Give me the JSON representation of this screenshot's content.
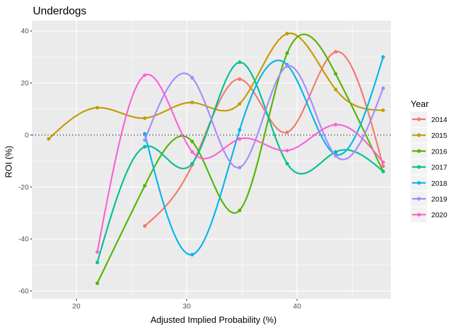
{
  "chart_data": {
    "type": "scatter",
    "title": "Underdogs",
    "xlabel": "Adjusted Implied Probability (%)",
    "ylabel": "ROI (%)",
    "xlim": [
      16,
      48.5
    ],
    "ylim": [
      -63,
      44
    ],
    "xticks": [
      20,
      30,
      40
    ],
    "yticks": [
      -60,
      -40,
      -20,
      0,
      20,
      40
    ],
    "grid": true,
    "reference_line": {
      "y": 0,
      "style": "dotted"
    },
    "legend": {
      "title": "Year",
      "position": "right"
    },
    "series": [
      {
        "name": "2014",
        "color": "#F8766D",
        "x": [
          26.2,
          30.5,
          34.8,
          39.1,
          43.5,
          47.8
        ],
        "y": [
          -35,
          -11.5,
          21.5,
          1,
          32,
          -12
        ]
      },
      {
        "name": "2015",
        "color": "#C49A00",
        "x": [
          17.5,
          21.9,
          26.2,
          30.5,
          34.8,
          39.1,
          43.5,
          47.8
        ],
        "y": [
          -1.5,
          10.5,
          6.5,
          12.5,
          12,
          39,
          17.5,
          9.5
        ]
      },
      {
        "name": "2016",
        "color": "#53B400",
        "x": [
          21.9,
          26.2,
          30.5,
          34.8,
          39.1,
          43.5,
          47.8
        ],
        "y": [
          -57,
          -19.5,
          -2.5,
          -29,
          31.5,
          23.5,
          -14
        ]
      },
      {
        "name": "2017",
        "color": "#00C094",
        "x": [
          21.9,
          26.2,
          30.5,
          34.8,
          39.1,
          43.5,
          47.8
        ],
        "y": [
          -49,
          -4.5,
          -11,
          28,
          -11,
          -6.5,
          -14
        ]
      },
      {
        "name": "2018",
        "color": "#00B6EB",
        "x": [
          26.2,
          30.5,
          34.8,
          39.1,
          43.5,
          47.8
        ],
        "y": [
          0.5,
          -46,
          2,
          27,
          -7.5,
          30
        ]
      },
      {
        "name": "2019",
        "color": "#A58AFF",
        "x": [
          26.2,
          30.5,
          34.8,
          39.1,
          43.5,
          47.8
        ],
        "y": [
          -2,
          22,
          -12.5,
          26.5,
          -8,
          18
        ]
      },
      {
        "name": "2020",
        "color": "#FB61D7",
        "x": [
          21.9,
          26.2,
          30.5,
          34.8,
          39.1,
          43.5,
          47.8
        ],
        "y": [
          -45,
          23,
          -6.5,
          -1.5,
          -6,
          4,
          -10.5
        ]
      }
    ]
  }
}
